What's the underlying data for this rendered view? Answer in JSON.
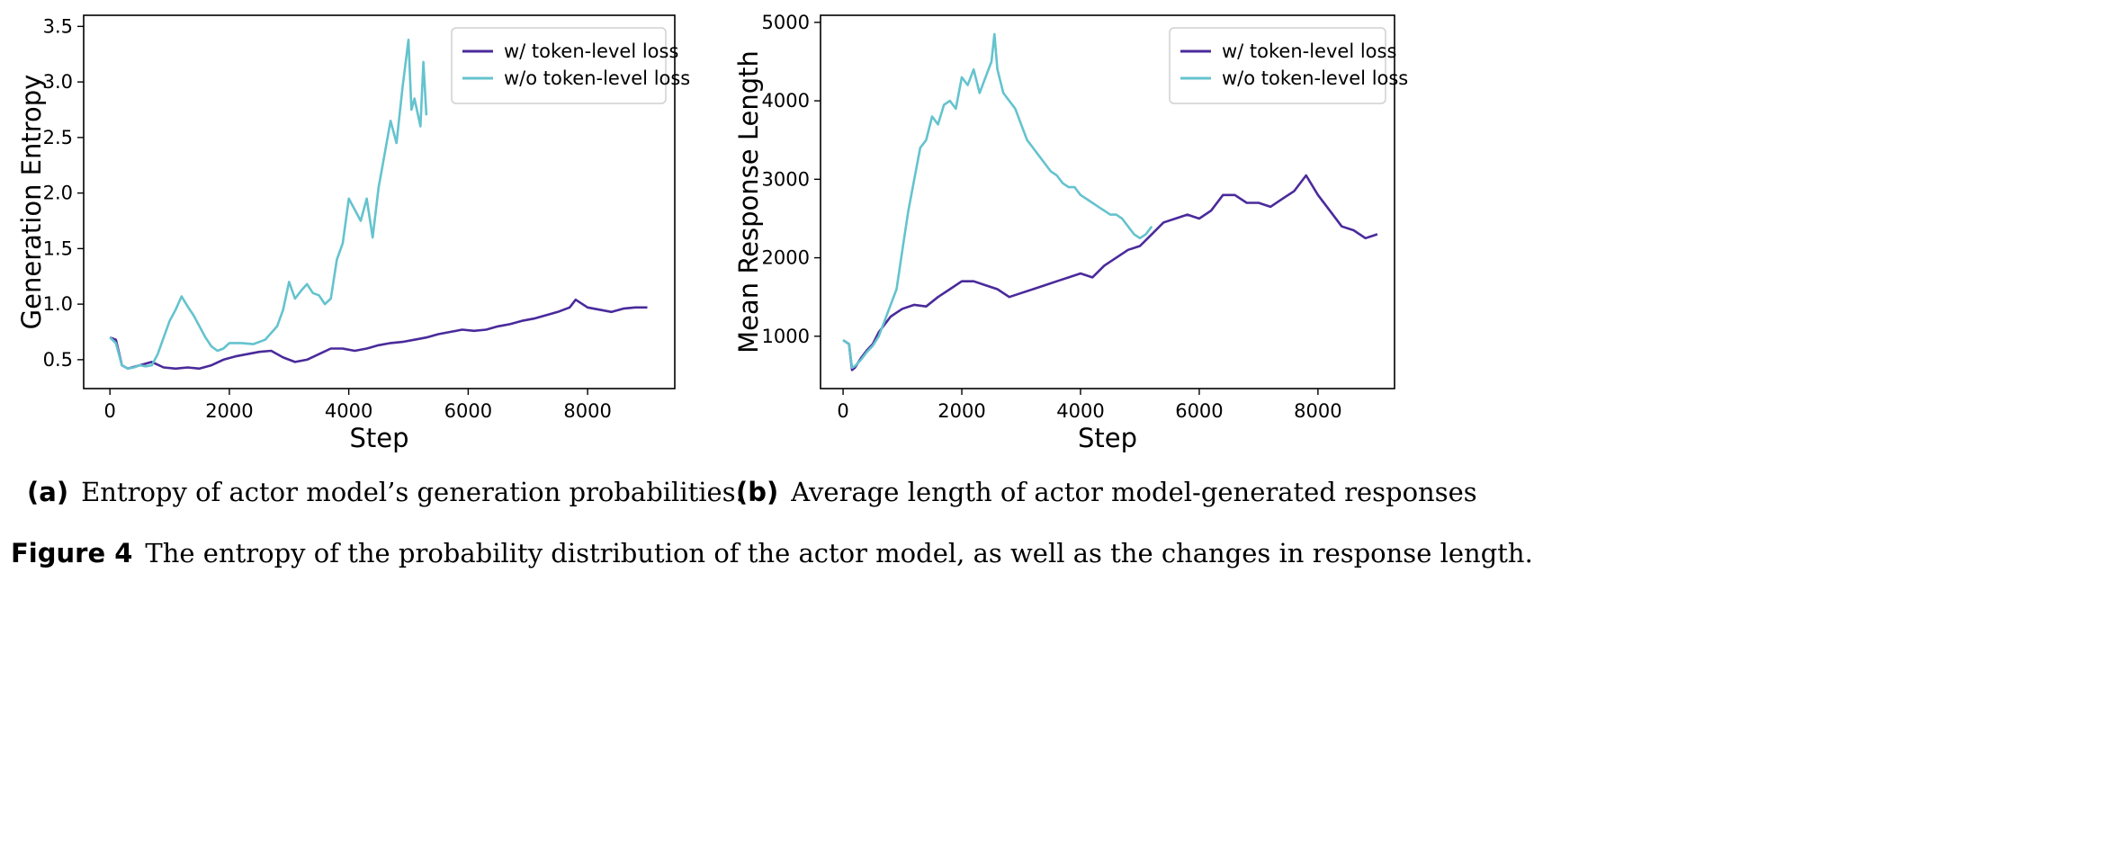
{
  "chart_data": [
    {
      "type": "line",
      "title": "",
      "xlabel": "Step",
      "ylabel": "Generation Entropy",
      "xlim": [
        -440,
        9460
      ],
      "ylim": [
        0.24,
        3.6
      ],
      "xticks": [
        0,
        2000,
        4000,
        6000,
        8000
      ],
      "xtick_labels": [
        "0",
        "2000",
        "4000",
        "6000",
        "8000"
      ],
      "yticks": [
        0.5,
        1.0,
        1.5,
        2.0,
        2.5,
        3.0,
        3.5
      ],
      "ytick_labels": [
        "0.5",
        "1.0",
        "1.5",
        "2.0",
        "2.5",
        "3.0",
        "3.5"
      ],
      "grid": false,
      "legend_position": "top-right",
      "series": [
        {
          "name": "w/ token-level loss",
          "color": "#4a2a9b",
          "x": [
            0,
            100,
            200,
            300,
            500,
            700,
            900,
            1100,
            1300,
            1500,
            1700,
            1900,
            2100,
            2300,
            2500,
            2700,
            2900,
            3100,
            3300,
            3500,
            3700,
            3900,
            4100,
            4300,
            4500,
            4700,
            4900,
            5100,
            5300,
            5500,
            5700,
            5900,
            6100,
            6300,
            6500,
            6700,
            6900,
            7100,
            7300,
            7500,
            7700,
            7800,
            8000,
            8200,
            8400,
            8600,
            8800,
            9000
          ],
          "y": [
            0.7,
            0.68,
            0.45,
            0.42,
            0.45,
            0.48,
            0.43,
            0.42,
            0.43,
            0.42,
            0.45,
            0.5,
            0.53,
            0.55,
            0.57,
            0.58,
            0.52,
            0.48,
            0.5,
            0.55,
            0.6,
            0.6,
            0.58,
            0.6,
            0.63,
            0.65,
            0.66,
            0.68,
            0.7,
            0.73,
            0.75,
            0.77,
            0.76,
            0.77,
            0.8,
            0.82,
            0.85,
            0.87,
            0.9,
            0.93,
            0.97,
            1.04,
            0.97,
            0.95,
            0.93,
            0.96,
            0.97,
            0.97
          ]
        },
        {
          "name": "w/o token-level loss",
          "color": "#64c3ce",
          "x": [
            0,
            100,
            200,
            300,
            400,
            500,
            600,
            700,
            800,
            900,
            1000,
            1100,
            1200,
            1300,
            1400,
            1500,
            1600,
            1700,
            1800,
            1900,
            2000,
            2200,
            2400,
            2600,
            2800,
            2900,
            3000,
            3100,
            3200,
            3300,
            3400,
            3500,
            3600,
            3700,
            3800,
            3900,
            4000,
            4100,
            4200,
            4300,
            4400,
            4500,
            4600,
            4700,
            4800,
            4900,
            5000,
            5050,
            5100,
            5200,
            5250,
            5300
          ],
          "y": [
            0.7,
            0.65,
            0.45,
            0.42,
            0.43,
            0.45,
            0.44,
            0.45,
            0.55,
            0.7,
            0.85,
            0.95,
            1.07,
            0.98,
            0.9,
            0.8,
            0.7,
            0.62,
            0.58,
            0.6,
            0.65,
            0.65,
            0.64,
            0.68,
            0.8,
            0.95,
            1.2,
            1.05,
            1.12,
            1.18,
            1.1,
            1.08,
            1.0,
            1.05,
            1.4,
            1.55,
            1.95,
            1.85,
            1.75,
            1.95,
            1.6,
            2.05,
            2.35,
            2.65,
            2.45,
            2.95,
            3.38,
            2.75,
            2.85,
            2.6,
            3.18,
            2.7
          ]
        }
      ]
    },
    {
      "type": "line",
      "title": "",
      "xlabel": "Step",
      "ylabel": "Mean Response Length",
      "xlim": [
        -380,
        9290
      ],
      "ylim": [
        333,
        5090
      ],
      "xticks": [
        0,
        2000,
        4000,
        6000,
        8000
      ],
      "xtick_labels": [
        "0",
        "2000",
        "4000",
        "6000",
        "8000"
      ],
      "yticks": [
        1000,
        2000,
        3000,
        4000,
        5000
      ],
      "ytick_labels": [
        "1000",
        "2000",
        "3000",
        "4000",
        "5000"
      ],
      "grid": false,
      "legend_position": "top-right",
      "series": [
        {
          "name": "w/ token-level loss",
          "color": "#4a2a9b",
          "x": [
            0,
            100,
            150,
            200,
            300,
            400,
            500,
            600,
            700,
            800,
            900,
            1000,
            1200,
            1400,
            1600,
            1800,
            2000,
            2200,
            2400,
            2600,
            2800,
            3000,
            3200,
            3400,
            3600,
            3800,
            4000,
            4200,
            4400,
            4600,
            4800,
            5000,
            5200,
            5400,
            5600,
            5800,
            6000,
            6200,
            6400,
            6600,
            6800,
            7000,
            7200,
            7400,
            7600,
            7800,
            8000,
            8200,
            8400,
            8600,
            8800,
            9000
          ],
          "y": [
            950,
            900,
            570,
            600,
            720,
            820,
            900,
            1050,
            1150,
            1250,
            1300,
            1350,
            1400,
            1380,
            1500,
            1600,
            1700,
            1700,
            1650,
            1600,
            1500,
            1550,
            1600,
            1650,
            1700,
            1750,
            1800,
            1750,
            1900,
            2000,
            2100,
            2150,
            2300,
            2450,
            2500,
            2550,
            2500,
            2600,
            2800,
            2800,
            2700,
            2700,
            2650,
            2750,
            2850,
            3050,
            2800,
            2600,
            2400,
            2350,
            2250,
            2300
          ]
        },
        {
          "name": "w/o token-level loss",
          "color": "#64c3ce",
          "x": [
            0,
            100,
            150,
            200,
            300,
            400,
            500,
            600,
            700,
            800,
            900,
            1000,
            1100,
            1200,
            1300,
            1400,
            1500,
            1600,
            1700,
            1800,
            1900,
            2000,
            2100,
            2200,
            2300,
            2400,
            2500,
            2550,
            2600,
            2700,
            2800,
            2900,
            3000,
            3100,
            3200,
            3300,
            3400,
            3500,
            3600,
            3700,
            3800,
            3900,
            4000,
            4100,
            4200,
            4300,
            4400,
            4500,
            4600,
            4700,
            4800,
            4900,
            5000,
            5100,
            5200
          ],
          "y": [
            950,
            900,
            600,
            620,
            700,
            800,
            880,
            1000,
            1200,
            1400,
            1600,
            2100,
            2600,
            3000,
            3400,
            3500,
            3800,
            3700,
            3950,
            4000,
            3900,
            4300,
            4200,
            4400,
            4100,
            4300,
            4500,
            4850,
            4400,
            4100,
            4000,
            3900,
            3700,
            3500,
            3400,
            3300,
            3200,
            3100,
            3050,
            2950,
            2900,
            2900,
            2800,
            2750,
            2700,
            2650,
            2600,
            2550,
            2550,
            2500,
            2400,
            2300,
            2250,
            2300,
            2400
          ]
        }
      ]
    }
  ],
  "captions": {
    "a_label": "(a)",
    "a_text": "Entropy of actor model’s generation probabilities.",
    "b_label": "(b)",
    "b_text": "Average length of actor model-generated responses",
    "figure_label": "Figure 4",
    "figure_text": "The entropy of the probability distribution of the actor model, as well as the changes in response length."
  }
}
